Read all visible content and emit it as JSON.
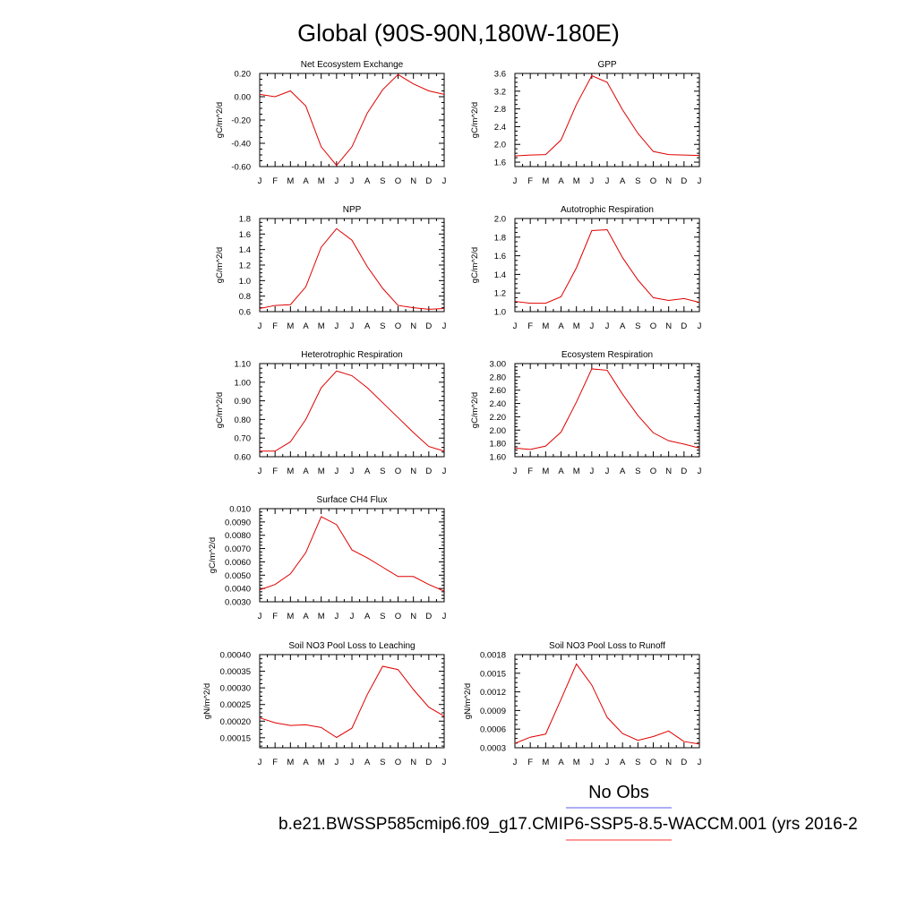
{
  "page_title": "Global (90S-90N,180W-180E)",
  "legend": {
    "obs_label": "No Obs",
    "obs_color": "#5b5bef",
    "model_color": "#ff3333"
  },
  "footer": "b.e21.BWSSP585cmip6.f09_g17.CMIP6-SSP5-8.5-WACCM.001 (yrs 2016-2",
  "line_color": "#e00000",
  "chart_data": [
    {
      "type": "line",
      "title": "Net Ecosystem Exchange",
      "ylabel": "gC/m^2/d",
      "categories": [
        "J",
        "F",
        "M",
        "A",
        "M",
        "J",
        "J",
        "A",
        "S",
        "O",
        "N",
        "D",
        "J"
      ],
      "ylim": [
        -0.6,
        0.2
      ],
      "yticks": [
        -0.6,
        -0.4,
        -0.2,
        0.0,
        0.2
      ],
      "ytick_labels": [
        "-0.60",
        "-0.40",
        "-0.20",
        "0.00",
        "0.20"
      ],
      "values": [
        0.02,
        0.0,
        0.05,
        -0.08,
        -0.43,
        -0.59,
        -0.43,
        -0.14,
        0.06,
        0.19,
        0.11,
        0.05,
        0.02
      ]
    },
    {
      "type": "line",
      "title": "GPP",
      "ylabel": "gC/m^2/d",
      "categories": [
        "J",
        "F",
        "M",
        "A",
        "M",
        "J",
        "J",
        "A",
        "S",
        "O",
        "N",
        "D",
        "J"
      ],
      "ylim": [
        1.5,
        3.6
      ],
      "yticks": [
        1.6,
        2.0,
        2.4,
        2.8,
        3.2,
        3.6
      ],
      "ytick_labels": [
        "1.6",
        "2.0",
        "2.4",
        "2.8",
        "3.2",
        "3.6"
      ],
      "values": [
        1.74,
        1.76,
        1.77,
        2.1,
        2.9,
        3.55,
        3.4,
        2.78,
        2.25,
        1.84,
        1.77,
        1.76,
        1.75
      ]
    },
    {
      "type": "line",
      "title": "NPP",
      "ylabel": "gC/m^2/d",
      "categories": [
        "J",
        "F",
        "M",
        "A",
        "M",
        "J",
        "J",
        "A",
        "S",
        "O",
        "N",
        "D",
        "J"
      ],
      "ylim": [
        0.6,
        1.8
      ],
      "yticks": [
        0.6,
        0.8,
        1.0,
        1.2,
        1.4,
        1.6,
        1.8
      ],
      "ytick_labels": [
        "0.6",
        "0.8",
        "1.0",
        "1.2",
        "1.4",
        "1.6",
        "1.8"
      ],
      "values": [
        0.64,
        0.68,
        0.69,
        0.92,
        1.43,
        1.67,
        1.52,
        1.18,
        0.9,
        0.68,
        0.65,
        0.63,
        0.64
      ]
    },
    {
      "type": "line",
      "title": "Autotrophic Respiration",
      "ylabel": "gC/m^2/d",
      "categories": [
        "J",
        "F",
        "M",
        "A",
        "M",
        "J",
        "J",
        "A",
        "S",
        "O",
        "N",
        "D",
        "J"
      ],
      "ylim": [
        1.0,
        2.0
      ],
      "yticks": [
        1.0,
        1.2,
        1.4,
        1.6,
        1.8,
        2.0
      ],
      "ytick_labels": [
        "1.0",
        "1.2",
        "1.4",
        "1.6",
        "1.8",
        "2.0"
      ],
      "values": [
        1.11,
        1.09,
        1.09,
        1.16,
        1.47,
        1.87,
        1.88,
        1.58,
        1.34,
        1.15,
        1.12,
        1.14,
        1.1
      ]
    },
    {
      "type": "line",
      "title": "Heterotrophic Respiration",
      "ylabel": "gC/m^2/d",
      "categories": [
        "J",
        "F",
        "M",
        "A",
        "M",
        "J",
        "J",
        "A",
        "S",
        "O",
        "N",
        "D",
        "J"
      ],
      "ylim": [
        0.6,
        1.1
      ],
      "yticks": [
        0.6,
        0.7,
        0.8,
        0.9,
        1.0,
        1.1
      ],
      "ytick_labels": [
        "0.60",
        "0.70",
        "0.80",
        "0.90",
        "1.00",
        "1.10"
      ],
      "values": [
        0.63,
        0.63,
        0.68,
        0.8,
        0.97,
        1.06,
        1.035,
        0.97,
        0.89,
        0.81,
        0.73,
        0.655,
        0.63
      ]
    },
    {
      "type": "line",
      "title": "Ecosystem Respiration",
      "ylabel": "gC/m^2/d",
      "categories": [
        "J",
        "F",
        "M",
        "A",
        "M",
        "J",
        "J",
        "A",
        "S",
        "O",
        "N",
        "D",
        "J"
      ],
      "ylim": [
        1.6,
        3.0
      ],
      "yticks": [
        1.6,
        1.8,
        2.0,
        2.2,
        2.4,
        2.6,
        2.8,
        3.0
      ],
      "ytick_labels": [
        "1.60",
        "1.80",
        "2.00",
        "2.20",
        "2.40",
        "2.60",
        "2.80",
        "3.00"
      ],
      "values": [
        1.73,
        1.71,
        1.76,
        1.97,
        2.42,
        2.92,
        2.9,
        2.54,
        2.22,
        1.96,
        1.84,
        1.79,
        1.73
      ]
    },
    {
      "type": "line",
      "title": "Surface CH4 Flux",
      "ylabel": "gC/m^2/d",
      "categories": [
        "J",
        "F",
        "M",
        "A",
        "M",
        "J",
        "J",
        "A",
        "S",
        "O",
        "N",
        "D",
        "J"
      ],
      "ylim": [
        0.003,
        0.01
      ],
      "yticks": [
        0.003,
        0.004,
        0.005,
        0.006,
        0.007,
        0.008,
        0.009,
        0.01
      ],
      "ytick_labels": [
        "0.0030",
        "0.0040",
        "0.0050",
        "0.0060",
        "0.0070",
        "0.0080",
        "0.0090",
        "0.010"
      ],
      "values": [
        0.0039,
        0.0043,
        0.0051,
        0.0067,
        0.0094,
        0.0088,
        0.0069,
        0.0063,
        0.0056,
        0.0049,
        0.0049,
        0.0043,
        0.0038
      ]
    },
    {
      "type": "line",
      "title": "Soil NO3 Pool Loss to Leaching",
      "ylabel": "gN/m^2/d",
      "categories": [
        "J",
        "F",
        "M",
        "A",
        "M",
        "J",
        "J",
        "A",
        "S",
        "O",
        "N",
        "D",
        "J"
      ],
      "ylim": [
        0.00012,
        0.0004
      ],
      "yticks": [
        0.00015,
        0.0002,
        0.00025,
        0.0003,
        0.00035,
        0.0004
      ],
      "ytick_labels": [
        "0.00015",
        "0.00020",
        "0.00025",
        "0.00030",
        "0.00035",
        "0.00040"
      ],
      "values": [
        0.00021,
        0.000195,
        0.000187,
        0.000189,
        0.000181,
        0.000151,
        0.000179,
        0.00028,
        0.000365,
        0.000355,
        0.000295,
        0.000242,
        0.000215
      ]
    },
    {
      "type": "line",
      "title": "Soil NO3 Pool Loss to Runoff",
      "ylabel": "gN/m^2/d",
      "categories": [
        "J",
        "F",
        "M",
        "A",
        "M",
        "J",
        "J",
        "A",
        "S",
        "O",
        "N",
        "D",
        "J"
      ],
      "ylim": [
        0.0003,
        0.0018
      ],
      "yticks": [
        0.0003,
        0.0006,
        0.0009,
        0.0012,
        0.0015,
        0.0018
      ],
      "ytick_labels": [
        "0.0003",
        "0.0006",
        "0.0009",
        "0.0012",
        "0.0015",
        "0.0018"
      ],
      "values": [
        0.00037,
        0.00047,
        0.00052,
        0.00108,
        0.00165,
        0.00131,
        0.00079,
        0.00053,
        0.00042,
        0.00048,
        0.00057,
        0.0004,
        0.00036
      ]
    }
  ]
}
